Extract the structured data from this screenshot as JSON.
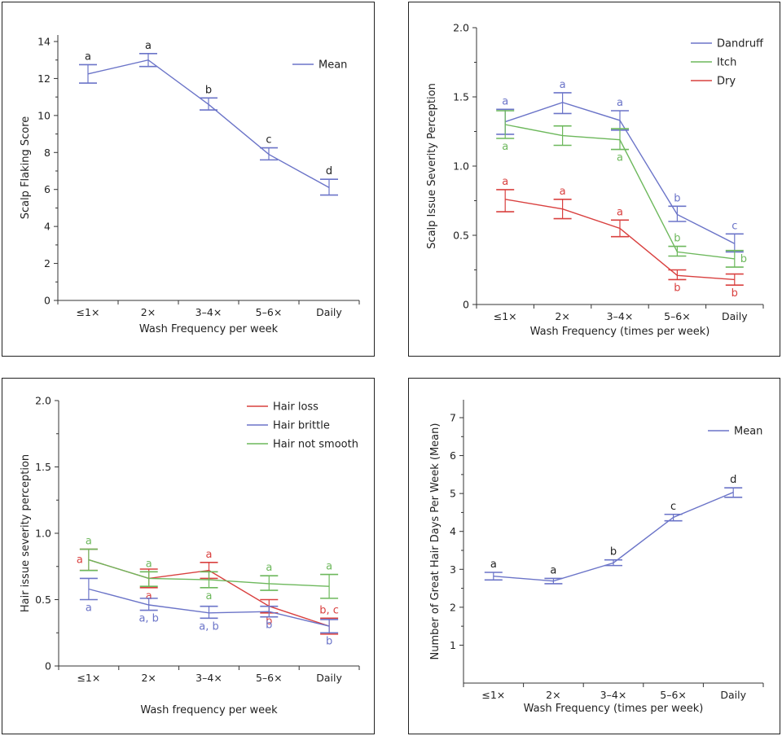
{
  "chart_data": [
    {
      "type": "line",
      "categories": [
        "≤1×",
        "2×",
        "3–4×",
        "5–6×",
        "Daily"
      ],
      "xlabel": "Wash Frequency per week",
      "ylabel": "Scalp Flaking Score",
      "ylim": [
        0,
        14
      ],
      "yticks": [
        "0",
        "2",
        "4",
        "6",
        "8",
        "10",
        "12",
        "14"
      ],
      "legend": "top-right",
      "series": [
        {
          "name": "Mean",
          "color": "#6b74c8",
          "values": [
            12.25,
            13.0,
            10.6,
            7.9,
            6.1
          ],
          "err_low": [
            11.75,
            12.65,
            10.3,
            7.6,
            5.7
          ],
          "err_high": [
            12.75,
            13.35,
            10.95,
            8.25,
            6.55
          ],
          "letters": [
            "a",
            "a",
            "b",
            "c",
            "d"
          ],
          "letter_pos": [
            "above",
            "above",
            "above",
            "above",
            "above"
          ]
        }
      ]
    },
    {
      "type": "line",
      "categories": [
        "≤1×",
        "2×",
        "3–4×",
        "5–6×",
        "Daily"
      ],
      "xlabel": "Wash Frequency (times per week)",
      "ylabel": "Scalp Issue Severity Perception",
      "ylim": [
        0,
        2.0
      ],
      "yticks": [
        "0",
        "0.5",
        "1.0",
        "1.5",
        "2.0"
      ],
      "legend": "top-right",
      "series": [
        {
          "name": "Dandruff",
          "color": "#6b74c8",
          "values": [
            1.32,
            1.46,
            1.33,
            0.65,
            0.44
          ],
          "err_low": [
            1.23,
            1.38,
            1.26,
            0.6,
            0.38
          ],
          "err_high": [
            1.41,
            1.53,
            1.4,
            0.71,
            0.51
          ],
          "letters": [
            "a",
            "a",
            "a",
            "b",
            "c"
          ],
          "letter_pos": [
            "above",
            "above",
            "above",
            "above",
            "above"
          ]
        },
        {
          "name": "Itch",
          "color": "#6db85c",
          "values": [
            1.3,
            1.22,
            1.19,
            0.38,
            0.33
          ],
          "err_low": [
            1.2,
            1.15,
            1.12,
            0.35,
            0.27
          ],
          "err_high": [
            1.4,
            1.29,
            1.27,
            0.42,
            0.39
          ],
          "letters": [
            "a",
            "",
            "a",
            "b",
            "b"
          ],
          "letter_pos": [
            "below",
            "below",
            "below",
            "above",
            "right"
          ]
        },
        {
          "name": "Dry",
          "color": "#d9403f",
          "values": [
            0.76,
            0.69,
            0.55,
            0.21,
            0.18
          ],
          "err_low": [
            0.67,
            0.62,
            0.49,
            0.18,
            0.14
          ],
          "err_high": [
            0.83,
            0.76,
            0.61,
            0.25,
            0.22
          ],
          "letters": [
            "a",
            "a",
            "a",
            "b",
            "b"
          ],
          "letter_pos": [
            "above",
            "above",
            "above",
            "below",
            "below"
          ]
        }
      ]
    },
    {
      "type": "line",
      "categories": [
        "≤1×",
        "2×",
        "3–4×",
        "5–6×",
        "Daily"
      ],
      "xlabel": "Wash frequency per week",
      "ylabel": "Hair issue severity perception",
      "ylim": [
        0,
        2.0
      ],
      "yticks": [
        "0",
        "0.5",
        "1.0",
        "1.5",
        "2.0"
      ],
      "legend": "top-right",
      "series": [
        {
          "name": "Hair loss",
          "color": "#d9403f",
          "values": [
            0.8,
            0.66,
            0.72,
            0.45,
            0.3
          ],
          "err_low": [
            0.72,
            0.59,
            0.66,
            0.4,
            0.24
          ],
          "err_high": [
            0.88,
            0.73,
            0.78,
            0.5,
            0.36
          ],
          "letters": [
            "a",
            "a",
            "a",
            "b",
            "b, c"
          ],
          "letter_pos": [
            "left",
            "below",
            "above",
            "below",
            "above"
          ]
        },
        {
          "name": "Hair brittle",
          "color": "#6b74c8",
          "values": [
            0.58,
            0.46,
            0.4,
            0.41,
            0.3
          ],
          "err_low": [
            0.5,
            0.42,
            0.36,
            0.37,
            0.25
          ],
          "err_high": [
            0.66,
            0.51,
            0.45,
            0.45,
            0.35
          ],
          "letters": [
            "a",
            "a, b",
            "a, b",
            "b",
            "b"
          ],
          "letter_pos": [
            "below",
            "below",
            "below",
            "below",
            "below"
          ]
        },
        {
          "name": "Hair not smooth",
          "color": "#6db85c",
          "values": [
            0.8,
            0.66,
            0.65,
            0.62,
            0.6
          ],
          "err_low": [
            0.72,
            0.6,
            0.59,
            0.57,
            0.51
          ],
          "err_high": [
            0.88,
            0.71,
            0.71,
            0.68,
            0.69
          ],
          "letters": [
            "a",
            "a",
            "a",
            "a",
            "a"
          ],
          "letter_pos": [
            "above",
            "above",
            "below",
            "above",
            "above"
          ]
        }
      ]
    },
    {
      "type": "line",
      "categories": [
        "≤1×",
        "2×",
        "3–4×",
        "5–6×",
        "Daily"
      ],
      "xlabel": "Wash Frequency (times per week)",
      "ylabel": "Number of Great Hair Days Per Week (Mean)",
      "ylim": [
        0,
        7.5
      ],
      "yticks": [
        "1",
        "2",
        "3",
        "4",
        "5",
        "6",
        "7"
      ],
      "legend": "top-right",
      "series": [
        {
          "name": "Mean",
          "color": "#6b74c8",
          "values": [
            2.82,
            2.69,
            3.17,
            4.37,
            5.03
          ],
          "err_low": [
            2.72,
            2.62,
            3.1,
            4.28,
            4.9
          ],
          "err_high": [
            2.92,
            2.76,
            3.25,
            4.45,
            5.15
          ],
          "letters": [
            "a",
            "a",
            "b",
            "c",
            "d"
          ],
          "letter_pos": [
            "above",
            "above",
            "above",
            "above",
            "above"
          ]
        }
      ]
    }
  ]
}
